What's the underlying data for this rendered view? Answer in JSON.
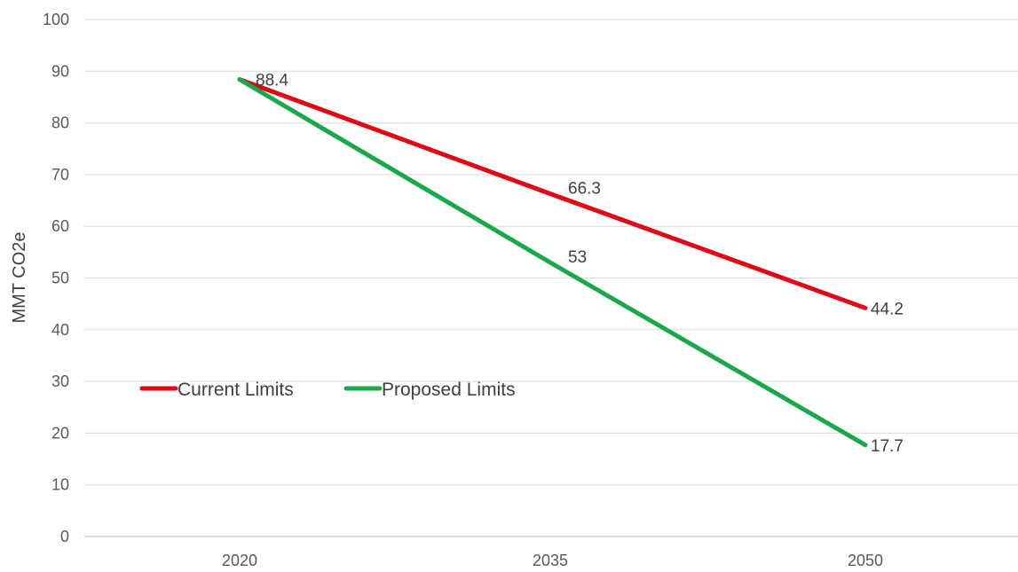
{
  "chart_data": {
    "type": "line",
    "title": "",
    "xlabel": "",
    "ylabel": "MMT  CO2e",
    "categories": [
      "2020",
      "2035",
      "2050"
    ],
    "ylim": [
      0,
      100
    ],
    "yticks": [
      0,
      10,
      20,
      30,
      40,
      50,
      60,
      70,
      80,
      90,
      100
    ],
    "grid": true,
    "legend_position": "left",
    "series": [
      {
        "name": "Current Limits",
        "color": "#e30613",
        "values": [
          88.4,
          66.3,
          44.2
        ],
        "labels": [
          "88.4",
          "66.3",
          "44.2"
        ]
      },
      {
        "name": "Proposed Limits",
        "color": "#19a94a",
        "values": [
          88.4,
          53,
          17.7
        ],
        "labels": [
          "",
          "53",
          "17.7"
        ]
      }
    ]
  }
}
